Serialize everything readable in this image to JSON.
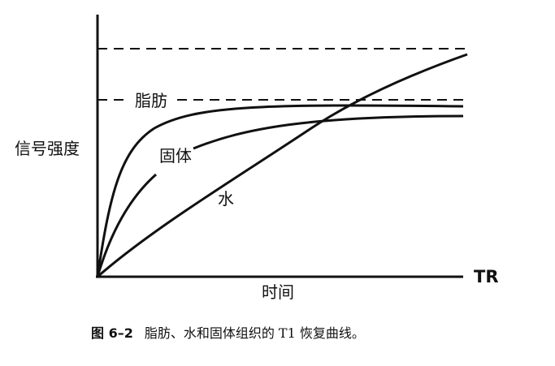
{
  "figure": {
    "ylabel": "信号强度",
    "xlabel": "时间",
    "x_axis_end_label": "TR",
    "caption_number": "图 6–2",
    "caption_text": "脂肪、水和固体组织的 T1 恢复曲线。"
  },
  "chart_data": {
    "type": "line",
    "title": "",
    "xlabel": "时间",
    "ylabel": "信号强度",
    "x_axis_end_label": "TR",
    "reference_lines": [
      {
        "style": "dashed",
        "label": ""
      },
      {
        "style": "dashed",
        "label": "脂肪"
      }
    ],
    "series": [
      {
        "name": "脂肪",
        "label_shown": false
      },
      {
        "name": "固体",
        "label_shown": true
      },
      {
        "name": "水",
        "label_shown": true
      }
    ],
    "grid": false,
    "legend": "none"
  }
}
